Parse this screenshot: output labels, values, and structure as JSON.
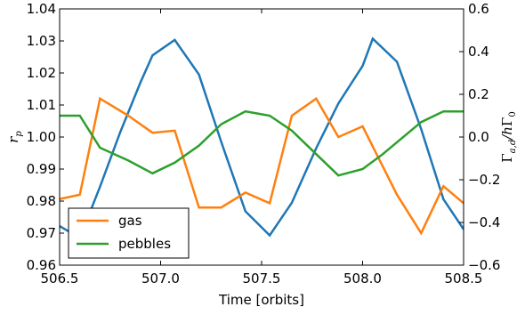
{
  "chart_data": {
    "type": "line",
    "xlabel": "Time [orbits]",
    "ylabel_left": "r",
    "ylabel_left_sub": "p",
    "ylabel_right": "Γa,d/hΓ0",
    "ylabel_right_parts": {
      "g1": "Γ",
      "s1": "a,d",
      "mid": "/h",
      "g2": "Γ",
      "s2": "0"
    },
    "xlim": [
      506.5,
      508.5
    ],
    "ylim_left": [
      0.96,
      1.04
    ],
    "ylim_right": [
      -0.6,
      0.6
    ],
    "x_ticks": [
      "506.5",
      "507.0",
      "507.5",
      "508.0",
      "508.5"
    ],
    "x_tick_values": [
      506.5,
      507.0,
      507.5,
      508.0,
      508.5
    ],
    "y_left_ticks": [
      "0.96",
      "0.97",
      "0.98",
      "0.99",
      "1.00",
      "1.01",
      "1.02",
      "1.03",
      "1.04"
    ],
    "y_left_tick_values": [
      0.96,
      0.97,
      0.98,
      0.99,
      1.0,
      1.01,
      1.02,
      1.03,
      1.04
    ],
    "y_right_ticks": [
      "−0.6",
      "−0.4",
      "−0.2",
      "0.0",
      "0.2",
      "0.4",
      "0.6"
    ],
    "y_right_tick_values": [
      -0.6,
      -0.4,
      -0.2,
      0.0,
      0.2,
      0.4,
      0.6
    ],
    "legend_position": "lower-left",
    "series": [
      {
        "axis": "left",
        "color": "#1f77b4",
        "in_legend": false,
        "x": [
          506.5,
          506.6,
          506.7,
          506.8,
          506.9,
          506.96,
          507.07,
          507.19,
          507.3,
          507.42,
          507.54,
          507.65,
          507.77,
          507.88,
          508.0,
          508.05,
          508.17,
          508.29,
          508.4,
          508.5
        ],
        "y": [
          0.9722,
          0.9685,
          0.9845,
          1.0015,
          1.017,
          1.0255,
          1.0303,
          1.0195,
          0.9985,
          0.9768,
          0.9693,
          0.9795,
          0.9965,
          1.0105,
          1.0222,
          1.0307,
          1.0235,
          1.0025,
          0.9806,
          0.9712
        ]
      },
      {
        "axis": "right",
        "name": "gas",
        "color": "#ff7f0e",
        "in_legend": true,
        "x": [
          506.5,
          506.6,
          506.7,
          506.84,
          506.96,
          507.07,
          507.19,
          507.3,
          507.42,
          507.54,
          507.65,
          507.77,
          507.88,
          508.0,
          508.17,
          508.29,
          508.4,
          508.5
        ],
        "y": [
          -0.29,
          -0.27,
          0.18,
          0.1,
          0.02,
          0.03,
          -0.33,
          -0.33,
          -0.26,
          -0.31,
          0.1,
          0.18,
          0.0,
          0.05,
          -0.27,
          -0.45,
          -0.23,
          -0.31
        ]
      },
      {
        "axis": "right",
        "name": "pebbles",
        "color": "#2ca02c",
        "in_legend": true,
        "x": [
          506.5,
          506.6,
          506.7,
          506.84,
          506.96,
          507.07,
          507.19,
          507.3,
          507.42,
          507.54,
          507.65,
          507.77,
          507.88,
          508.0,
          508.1,
          508.29,
          508.4,
          508.5
        ],
        "y": [
          0.1,
          0.1,
          -0.05,
          -0.11,
          -0.17,
          -0.12,
          -0.04,
          0.06,
          0.12,
          0.1,
          0.03,
          -0.08,
          -0.18,
          -0.15,
          -0.08,
          0.07,
          0.12,
          0.12
        ]
      }
    ]
  }
}
